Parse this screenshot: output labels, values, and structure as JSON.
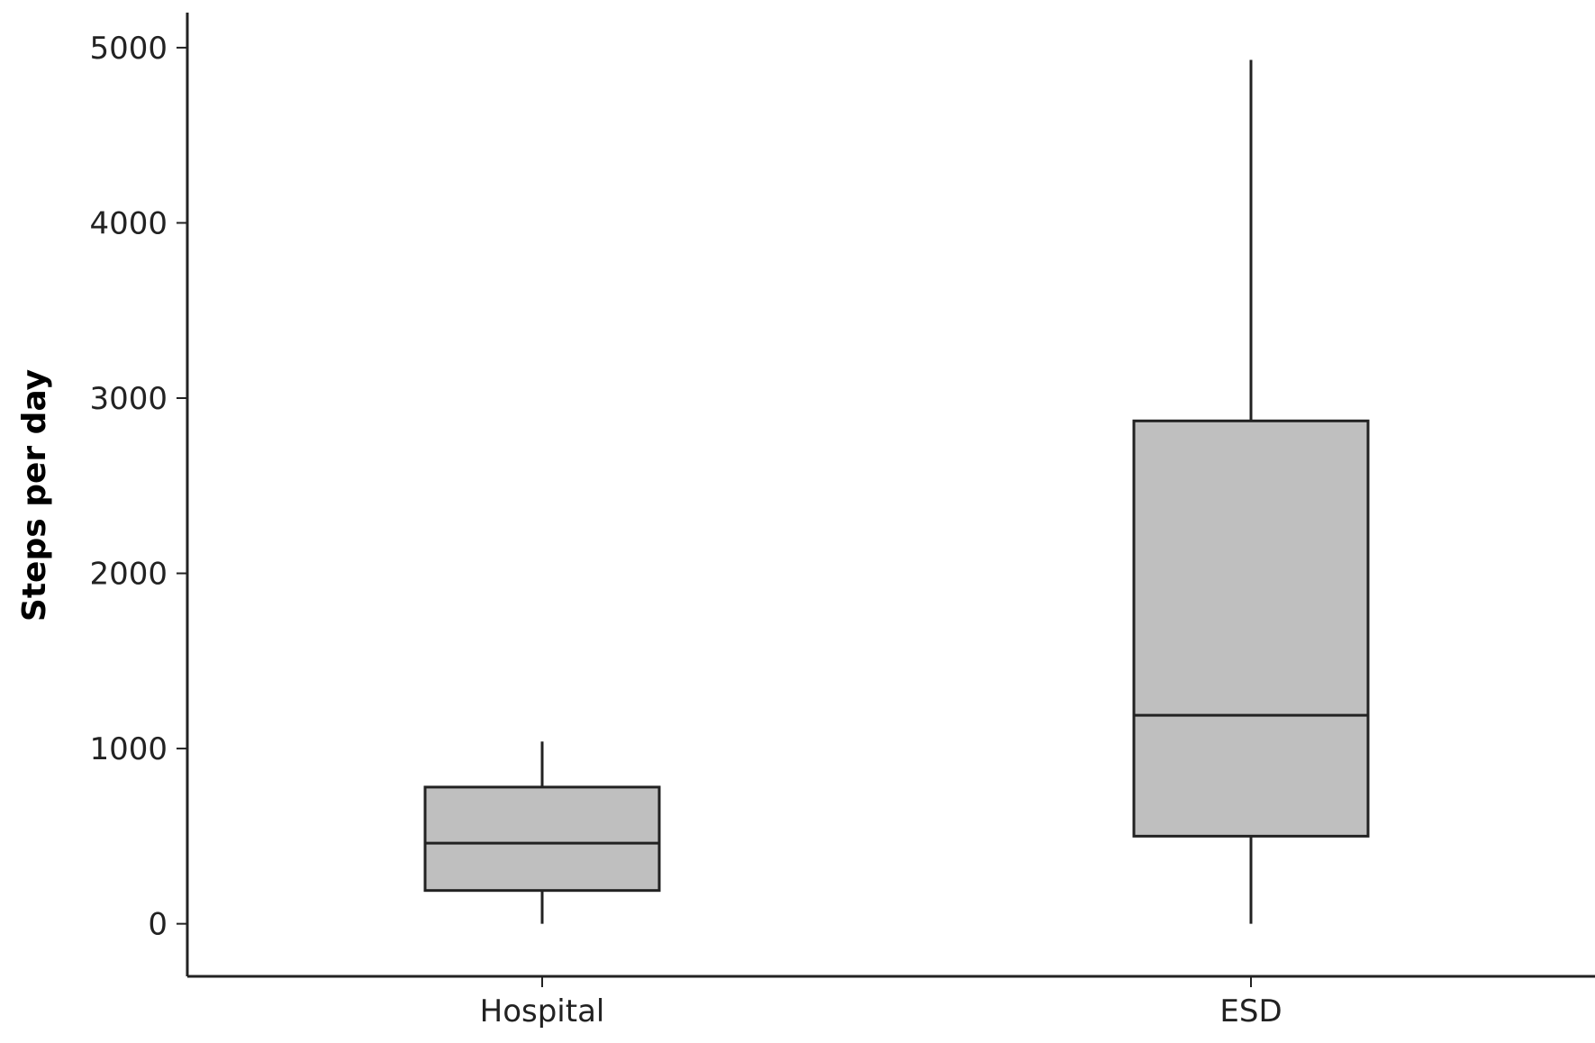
{
  "chart_data": {
    "type": "boxplot",
    "title": "",
    "xlabel": "",
    "ylabel": "Steps per day",
    "ylim": [
      -300,
      5200
    ],
    "yticks": [
      0,
      1000,
      2000,
      3000,
      4000,
      5000
    ],
    "grid": false,
    "legend": "none",
    "box_fill": "#bfbfbf",
    "box_stroke": "#222222",
    "categories": [
      "Hospital",
      "ESD"
    ],
    "boxes": [
      {
        "name": "Hospital",
        "min": 0,
        "q1": 190,
        "median": 460,
        "q3": 780,
        "max": 1040
      },
      {
        "name": "ESD",
        "min": 0,
        "q1": 500,
        "median": 1190,
        "q3": 2870,
        "max": 4930
      }
    ]
  }
}
